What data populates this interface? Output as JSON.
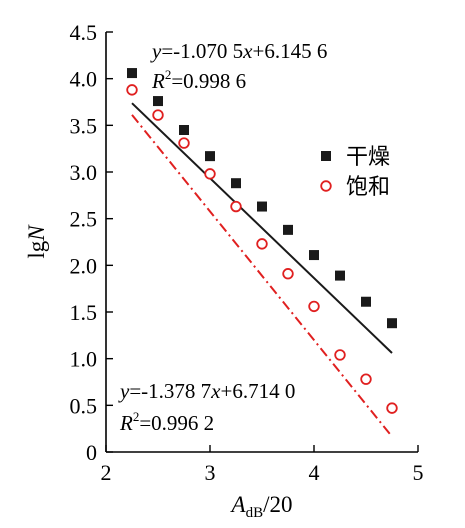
{
  "chart_data": {
    "type": "scatter",
    "xlabel_main": "A",
    "xlabel_sub": "dB",
    "xlabel_suffix": "/20",
    "ylabel_main": "lg",
    "ylabel_italic": "N",
    "xlim": [
      2,
      5
    ],
    "ylim": [
      0,
      4.5
    ],
    "x_ticks": [
      2,
      3,
      4,
      5
    ],
    "x_tick_labels": [
      "2",
      "3",
      "4",
      "5"
    ],
    "y_ticks": [
      0,
      0.5,
      1.0,
      1.5,
      2.0,
      2.5,
      3.0,
      3.5,
      4.0,
      4.5
    ],
    "y_tick_labels": [
      "0",
      "0.5",
      "1.0",
      "1.5",
      "2.0",
      "2.5",
      "3.0",
      "3.5",
      "4.0",
      "4.5"
    ],
    "series": [
      {
        "name": "干燥",
        "color": "#1a1a1a",
        "marker": "filled-square",
        "line_style": "solid",
        "x": [
          2.25,
          2.5,
          2.75,
          3.0,
          3.25,
          3.5,
          3.75,
          4.0,
          4.25,
          4.5,
          4.75
        ],
        "y": [
          4.06,
          3.76,
          3.45,
          3.17,
          2.88,
          2.63,
          2.38,
          2.11,
          1.89,
          1.61,
          1.38
        ],
        "fit": {
          "slope": -1.0705,
          "intercept": 6.1456,
          "x_range": [
            2.25,
            4.75
          ]
        },
        "equation": {
          "y_prefix": "y",
          "body": "=-1.070 5",
          "x_var": "x",
          "tail": "+6.145 6"
        },
        "r2": {
          "r": "R",
          "sup": "2",
          "value": "=0.998 6"
        }
      },
      {
        "name": "饱和",
        "color": "#e02020",
        "marker": "open-circle",
        "line_style": "dash-dot",
        "x": [
          2.25,
          2.5,
          2.75,
          3.0,
          3.25,
          3.5,
          3.75,
          4.0,
          4.25,
          4.5,
          4.75
        ],
        "y": [
          3.88,
          3.61,
          3.31,
          2.98,
          2.63,
          2.23,
          1.91,
          1.56,
          1.04,
          0.78,
          0.47
        ],
        "fit": {
          "slope": -1.3787,
          "intercept": 6.714,
          "x_range": [
            2.25,
            4.75
          ]
        },
        "equation": {
          "y_prefix": "y",
          "body": "=-1.378 7",
          "x_var": "x",
          "tail": "+6.714 0"
        },
        "r2": {
          "r": "R",
          "sup": "2",
          "value": "=0.996 2"
        }
      }
    ],
    "legend": {
      "position": "right-middle"
    },
    "grid": false
  }
}
